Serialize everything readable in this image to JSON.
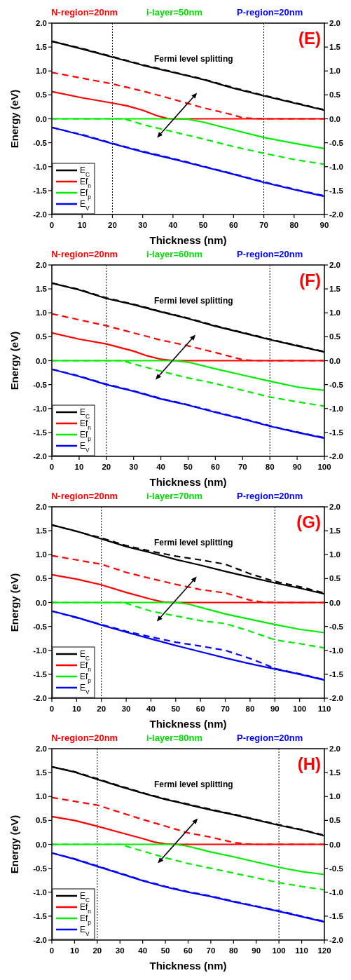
{
  "chart_data": [
    {
      "type": "line",
      "title": "(E)",
      "annotations": [
        "N-region=20nm",
        "i-layer=50nm",
        "P-region=20nm",
        "Fermi level splitting"
      ],
      "xlabel": "Thickness (nm)",
      "ylabel": "Energy (eV)",
      "xlim": [
        0,
        90
      ],
      "xticks": [
        0,
        10,
        20,
        30,
        40,
        50,
        60,
        70,
        80,
        90
      ],
      "ylim": [
        -2,
        2
      ],
      "yticks": [
        {
          "value": -2,
          "label": "-2.0"
        },
        {
          "value": -1.5,
          "label": "-1.5"
        },
        {
          "value": -1,
          "label": "-1.0"
        },
        {
          "value": -0.5,
          "label": "-0.5"
        },
        {
          "value": 0,
          "label": "0.0"
        },
        {
          "value": 0.5,
          "label": "0.5"
        },
        {
          "value": 1,
          "label": "1.0"
        },
        {
          "value": 1.5,
          "label": "1.5"
        },
        {
          "value": 2,
          "label": "2.0"
        }
      ],
      "y2lim": [
        -2,
        2
      ],
      "y2ticks": [
        {
          "value": -2,
          "label": "-2.0"
        },
        {
          "value": -1.5,
          "label": "-1.5"
        },
        {
          "value": -1,
          "label": "-1.0"
        },
        {
          "value": -0.5,
          "label": "-0.5"
        },
        {
          "value": 0,
          "label": "0.0"
        },
        {
          "value": 0.5,
          "label": "0.5"
        },
        {
          "value": 1,
          "label": "1.0"
        },
        {
          "value": 1.5,
          "label": "1.5"
        },
        {
          "value": 2,
          "label": "2.0"
        }
      ],
      "grid": false,
      "legend": "bottom left",
      "line_style": "solid",
      "marker": "none",
      "ref_lines": [
        {
          "axis": "x",
          "value": 20,
          "line_style": "dotted",
          "color": "#000000"
        },
        {
          "axis": "x",
          "value": 70,
          "line_style": "dotted",
          "color": "#000000"
        }
      ],
      "series": [
        {
          "name": "E$_{C}$",
          "color": "#000000",
          "x": [
            0,
            10,
            20,
            30,
            40,
            50,
            60,
            70,
            80,
            90
          ],
          "values": [
            1.62,
            1.46,
            1.29,
            1.12,
            0.97,
            0.82,
            0.64,
            0.48,
            0.33,
            0.18
          ]
        },
        {
          "name": "Ef$_{n}$",
          "color": "#ff0000",
          "x": [
            0,
            10,
            20,
            25,
            30,
            35,
            38,
            40,
            90
          ],
          "values": [
            0.57,
            0.44,
            0.33,
            0.27,
            0.18,
            0.06,
            0.01,
            0,
            0
          ]
        },
        {
          "name": "Ef$_{p}$",
          "color": "#00ee00",
          "x": [
            0,
            42,
            45,
            50,
            60,
            70,
            80,
            90
          ],
          "values": [
            0,
            0,
            -0.01,
            -0.07,
            -0.23,
            -0.39,
            -0.51,
            -0.62
          ]
        },
        {
          "name": "E$_{V}$",
          "color": "#0000ff",
          "x": [
            0,
            10,
            20,
            30,
            40,
            50,
            60,
            70,
            80,
            90
          ],
          "values": [
            -0.18,
            -0.34,
            -0.52,
            -0.69,
            -0.84,
            -1,
            -1.16,
            -1.33,
            -1.48,
            -1.62
          ]
        },
        {
          "color": "#000000",
          "line_style": "dashed",
          "x": [
            0,
            10,
            20,
            30,
            40,
            50,
            60,
            70,
            80,
            90
          ],
          "values": [
            1.62,
            1.47,
            1.3,
            1.13,
            0.98,
            0.83,
            0.65,
            0.49,
            0.34,
            0.19
          ]
        },
        {
          "color": "#ff0000",
          "line_style": "dashed",
          "x": [
            0,
            20,
            30,
            40,
            50,
            60,
            63,
            70,
            90
          ],
          "values": [
            0.97,
            0.73,
            0.58,
            0.41,
            0.23,
            0.08,
            0.02,
            0,
            0
          ]
        },
        {
          "color": "#00ee00",
          "line_style": "dashed",
          "x": [
            0,
            24,
            30,
            40,
            50,
            60,
            70,
            80,
            90
          ],
          "values": [
            0,
            0,
            -0.12,
            -0.27,
            -0.42,
            -0.58,
            -0.72,
            -0.85,
            -0.95
          ]
        },
        {
          "color": "#0000ff",
          "line_style": "dashed",
          "x": [
            0,
            10,
            20,
            30,
            40,
            50,
            60,
            70,
            80,
            90
          ],
          "values": [
            -0.18,
            -0.33,
            -0.51,
            -0.68,
            -0.83,
            -0.99,
            -1.15,
            -1.32,
            -1.47,
            -1.61
          ]
        }
      ]
    },
    {
      "type": "line",
      "title": "(F)",
      "annotations": [
        "N-region=20nm",
        "i-layer=60nm",
        "P-region=20nm",
        "Fermi level splitting"
      ],
      "xlabel": "Thickness (nm)",
      "ylabel": "Energy (eV)",
      "xlim": [
        0,
        100
      ],
      "xticks": [
        0,
        10,
        20,
        30,
        40,
        50,
        60,
        70,
        80,
        90,
        100
      ],
      "ylim": [
        -2,
        2
      ],
      "yticks": [
        {
          "value": -2,
          "label": "-2.0"
        },
        {
          "value": -1.5,
          "label": "-1.5"
        },
        {
          "value": -1,
          "label": "-1.0"
        },
        {
          "value": -0.5,
          "label": "-0.5"
        },
        {
          "value": 0,
          "label": "0.0"
        },
        {
          "value": 0.5,
          "label": "0.5"
        },
        {
          "value": 1,
          "label": "1.0"
        },
        {
          "value": 1.5,
          "label": "1.5"
        },
        {
          "value": 2,
          "label": "2.0"
        }
      ],
      "y2lim": [
        -2,
        2
      ],
      "y2ticks": [
        {
          "value": -2,
          "label": "-2.0"
        },
        {
          "value": -1.5,
          "label": "-1.5"
        },
        {
          "value": -1,
          "label": "-1.0"
        },
        {
          "value": -0.5,
          "label": "-0.5"
        },
        {
          "value": 0,
          "label": "0.0"
        },
        {
          "value": 0.5,
          "label": "0.5"
        },
        {
          "value": 1,
          "label": "1.0"
        },
        {
          "value": 1.5,
          "label": "1.5"
        },
        {
          "value": 2,
          "label": "2.0"
        }
      ],
      "grid": false,
      "legend": "bottom left",
      "line_style": "solid",
      "marker": "none",
      "ref_lines": [
        {
          "axis": "x",
          "value": 20,
          "line_style": "dotted",
          "color": "#000000"
        },
        {
          "axis": "x",
          "value": 80,
          "line_style": "dotted",
          "color": "#000000"
        }
      ],
      "series": [
        {
          "name": "E$_{C}$",
          "color": "#000000",
          "x": [
            0,
            10,
            20,
            30,
            40,
            50,
            60,
            70,
            80,
            90,
            100
          ],
          "values": [
            1.62,
            1.48,
            1.3,
            1.17,
            1.02,
            0.88,
            0.72,
            0.58,
            0.44,
            0.31,
            0.18
          ]
        },
        {
          "name": "Ef$_{n}$",
          "color": "#ff0000",
          "x": [
            0,
            10,
            20,
            30,
            35,
            40,
            45,
            100
          ],
          "values": [
            0.58,
            0.45,
            0.35,
            0.2,
            0.1,
            0.03,
            0,
            0
          ]
        },
        {
          "name": "Ef$_{p}$",
          "color": "#00ee00",
          "x": [
            0,
            45,
            50,
            60,
            70,
            80,
            90,
            100
          ],
          "values": [
            0,
            0,
            -0.03,
            -0.17,
            -0.3,
            -0.43,
            -0.55,
            -0.62
          ]
        },
        {
          "name": "E$_{V}$",
          "color": "#0000ff",
          "x": [
            0,
            10,
            20,
            30,
            40,
            50,
            60,
            70,
            80,
            90,
            100
          ],
          "values": [
            -0.18,
            -0.33,
            -0.5,
            -0.64,
            -0.8,
            -0.93,
            -1.08,
            -1.22,
            -1.37,
            -1.5,
            -1.62
          ]
        },
        {
          "color": "#000000",
          "line_style": "dashed",
          "x": [
            0,
            10,
            20,
            30,
            40,
            50,
            60,
            70,
            80,
            90,
            100
          ],
          "values": [
            1.62,
            1.49,
            1.31,
            1.18,
            1.03,
            0.89,
            0.73,
            0.59,
            0.45,
            0.32,
            0.19
          ]
        },
        {
          "color": "#ff0000",
          "line_style": "dashed",
          "x": [
            0,
            20,
            40,
            50,
            60,
            70,
            75,
            100
          ],
          "values": [
            0.98,
            0.73,
            0.43,
            0.31,
            0.17,
            0.02,
            0,
            0
          ]
        },
        {
          "color": "#00ee00",
          "line_style": "dashed",
          "x": [
            0,
            26,
            30,
            40,
            50,
            60,
            70,
            80,
            90,
            100
          ],
          "values": [
            0,
            0,
            -0.07,
            -0.22,
            -0.36,
            -0.48,
            -0.62,
            -0.76,
            -0.86,
            -0.95
          ]
        },
        {
          "color": "#0000ff",
          "line_style": "dashed",
          "x": [
            0,
            10,
            20,
            30,
            40,
            50,
            60,
            70,
            80,
            90,
            100
          ],
          "values": [
            -0.18,
            -0.32,
            -0.49,
            -0.63,
            -0.79,
            -0.92,
            -1.07,
            -1.21,
            -1.36,
            -1.49,
            -1.61
          ]
        }
      ]
    },
    {
      "type": "line",
      "title": "(G)",
      "annotations": [
        "N-region=20nm",
        "i-layer=70nm",
        "P-region=20nm",
        "Fermi level splitting"
      ],
      "xlabel": "Thickness (nm)",
      "ylabel": "Energy (eV)",
      "xlim": [
        0,
        110
      ],
      "xticks": [
        0,
        10,
        20,
        30,
        40,
        50,
        60,
        70,
        80,
        90,
        100,
        110
      ],
      "ylim": [
        -2,
        2
      ],
      "yticks": [
        {
          "value": -2,
          "label": "-2.0"
        },
        {
          "value": -1.5,
          "label": "-1.5"
        },
        {
          "value": -1,
          "label": "-1.0"
        },
        {
          "value": -0.5,
          "label": "-0.5"
        },
        {
          "value": 0,
          "label": "0.0"
        },
        {
          "value": 0.5,
          "label": "0.5"
        },
        {
          "value": 1,
          "label": "1.0"
        },
        {
          "value": 1.5,
          "label": "1.5"
        },
        {
          "value": 2,
          "label": "2.0"
        }
      ],
      "y2lim": [
        -2,
        2
      ],
      "y2ticks": [
        {
          "value": -2,
          "label": "-2.0"
        },
        {
          "value": -1.5,
          "label": "-1.5"
        },
        {
          "value": -1,
          "label": "-1.0"
        },
        {
          "value": -0.5,
          "label": "-0.5"
        },
        {
          "value": 0,
          "label": "0.0"
        },
        {
          "value": 0.5,
          "label": "0.5"
        },
        {
          "value": 1,
          "label": "1.0"
        },
        {
          "value": 1.5,
          "label": "1.5"
        },
        {
          "value": 2,
          "label": "2.0"
        }
      ],
      "grid": false,
      "legend": "bottom left",
      "line_style": "solid",
      "marker": "none",
      "ref_lines": [
        {
          "axis": "x",
          "value": 20,
          "line_style": "dotted",
          "color": "#000000"
        },
        {
          "axis": "x",
          "value": 90,
          "line_style": "dotted",
          "color": "#000000"
        }
      ],
      "series": [
        {
          "name": "E$_{C}$",
          "color": "#000000",
          "x": [
            0,
            10,
            20,
            30,
            40,
            50,
            60,
            70,
            80,
            90,
            100,
            110
          ],
          "values": [
            1.62,
            1.49,
            1.33,
            1.17,
            1.04,
            0.9,
            0.78,
            0.65,
            0.53,
            0.41,
            0.3,
            0.18
          ]
        },
        {
          "name": "Ef$_{n}$",
          "color": "#ff0000",
          "x": [
            0,
            10,
            20,
            30,
            40,
            45,
            50,
            110
          ],
          "values": [
            0.58,
            0.49,
            0.37,
            0.21,
            0.07,
            0.01,
            0,
            0
          ]
        },
        {
          "name": "Ef$_{p}$",
          "color": "#00ee00",
          "x": [
            0,
            50,
            55,
            60,
            70,
            80,
            90,
            100,
            110
          ],
          "values": [
            0,
            0,
            -0.03,
            -0.1,
            -0.24,
            -0.35,
            -0.46,
            -0.56,
            -0.63
          ]
        },
        {
          "name": "E$_{V}$",
          "color": "#0000ff",
          "x": [
            0,
            10,
            20,
            30,
            40,
            50,
            60,
            70,
            80,
            90,
            100,
            110
          ],
          "values": [
            -0.18,
            -0.31,
            -0.47,
            -0.62,
            -0.76,
            -0.9,
            -1.03,
            -1.16,
            -1.28,
            -1.39,
            -1.5,
            -1.62
          ]
        },
        {
          "color": "#000000",
          "line_style": "dashed",
          "x": [
            0,
            20,
            30,
            40,
            50,
            60,
            70,
            80,
            85,
            90,
            100,
            110
          ],
          "values": [
            1.62,
            1.35,
            1.19,
            1.07,
            0.97,
            0.89,
            0.8,
            0.6,
            0.52,
            0.44,
            0.33,
            0.2
          ]
        },
        {
          "color": "#ff0000",
          "line_style": "dashed",
          "x": [
            0,
            20,
            30,
            40,
            50,
            60,
            70,
            80,
            85,
            90,
            110
          ],
          "values": [
            0.98,
            0.8,
            0.63,
            0.5,
            0.38,
            0.27,
            0.2,
            0.05,
            0.01,
            0,
            0
          ]
        },
        {
          "color": "#00ee00",
          "line_style": "dashed",
          "x": [
            0,
            29,
            35,
            40,
            50,
            60,
            70,
            80,
            90,
            100,
            110
          ],
          "values": [
            0,
            0,
            -0.1,
            -0.18,
            -0.28,
            -0.38,
            -0.44,
            -0.6,
            -0.78,
            -0.86,
            -0.95
          ]
        },
        {
          "color": "#0000ff",
          "line_style": "dashed",
          "x": [
            0,
            20,
            30,
            40,
            50,
            60,
            70,
            80,
            85,
            90,
            100,
            110
          ],
          "values": [
            -0.18,
            -0.46,
            -0.6,
            -0.72,
            -0.83,
            -0.91,
            -1,
            -1.17,
            -1.27,
            -1.38,
            -1.49,
            -1.61
          ]
        }
      ]
    },
    {
      "type": "line",
      "title": "(H)",
      "annotations": [
        "N-region=20nm",
        "i-layer=80nm",
        "P-region=20nm",
        "Fermi level splitting"
      ],
      "xlabel": "Thickness (nm)",
      "ylabel": "Energy (eV)",
      "xlim": [
        0,
        120
      ],
      "xticks": [
        0,
        10,
        20,
        30,
        40,
        50,
        60,
        70,
        80,
        90,
        100,
        110,
        120
      ],
      "ylim": [
        -2,
        2
      ],
      "yticks": [
        {
          "value": -2,
          "label": "-2.0"
        },
        {
          "value": -1.5,
          "label": "-1.5"
        },
        {
          "value": -1,
          "label": "-1.0"
        },
        {
          "value": -0.5,
          "label": "-0.5"
        },
        {
          "value": 0,
          "label": "0.0"
        },
        {
          "value": 0.5,
          "label": "0.5"
        },
        {
          "value": 1,
          "label": "1.0"
        },
        {
          "value": 1.5,
          "label": "1.5"
        },
        {
          "value": 2,
          "label": "2.0"
        }
      ],
      "y2lim": [
        -2,
        2
      ],
      "y2ticks": [
        {
          "value": -2,
          "label": "-2.0"
        },
        {
          "value": -1.5,
          "label": "-1.5"
        },
        {
          "value": -1,
          "label": "-1.0"
        },
        {
          "value": -0.5,
          "label": "-0.5"
        },
        {
          "value": 0,
          "label": "0.0"
        },
        {
          "value": 0.5,
          "label": "0.5"
        },
        {
          "value": 1,
          "label": "1.0"
        },
        {
          "value": 1.5,
          "label": "1.5"
        },
        {
          "value": 2,
          "label": "2.0"
        }
      ],
      "grid": false,
      "legend": "bottom left",
      "line_style": "solid",
      "marker": "none",
      "ref_lines": [
        {
          "axis": "x",
          "value": 20,
          "line_style": "dotted",
          "color": "#000000"
        },
        {
          "axis": "x",
          "value": 100,
          "line_style": "dotted",
          "color": "#000000"
        }
      ],
      "series": [
        {
          "name": "E$_{C}$",
          "color": "#000000",
          "x": [
            0,
            10,
            20,
            30,
            40,
            50,
            60,
            70,
            80,
            90,
            100,
            110,
            120
          ],
          "values": [
            1.62,
            1.51,
            1.36,
            1.21,
            1.07,
            0.94,
            0.83,
            0.72,
            0.62,
            0.51,
            0.4,
            0.3,
            0.18
          ]
        },
        {
          "name": "Ef$_{n}$",
          "color": "#ff0000",
          "x": [
            0,
            10,
            20,
            30,
            40,
            45,
            50,
            55,
            120
          ],
          "values": [
            0.58,
            0.5,
            0.38,
            0.25,
            0.12,
            0.05,
            0.01,
            0,
            0
          ]
        },
        {
          "name": "Ef$_{p}$",
          "color": "#00ee00",
          "x": [
            0,
            55,
            60,
            70,
            80,
            90,
            100,
            110,
            120
          ],
          "values": [
            0,
            0,
            -0.04,
            -0.16,
            -0.26,
            -0.37,
            -0.48,
            -0.57,
            -0.63
          ]
        },
        {
          "name": "E$_{V}$",
          "color": "#0000ff",
          "x": [
            0,
            10,
            20,
            30,
            40,
            50,
            60,
            70,
            80,
            90,
            100,
            110,
            120
          ],
          "values": [
            -0.18,
            -0.31,
            -0.46,
            -0.61,
            -0.76,
            -0.89,
            -1,
            -1.09,
            -1.2,
            -1.3,
            -1.4,
            -1.51,
            -1.62
          ]
        },
        {
          "color": "#000000",
          "line_style": "dashed",
          "x": [
            0,
            10,
            20,
            30,
            40,
            50,
            60,
            70,
            80,
            90,
            100,
            110,
            120
          ],
          "values": [
            1.62,
            1.52,
            1.37,
            1.22,
            1.08,
            0.95,
            0.84,
            0.73,
            0.63,
            0.52,
            0.41,
            0.31,
            0.19
          ]
        },
        {
          "color": "#ff0000",
          "line_style": "dashed",
          "x": [
            0,
            20,
            30,
            40,
            50,
            60,
            70,
            80,
            85,
            90,
            120
          ],
          "values": [
            0.98,
            0.82,
            0.67,
            0.52,
            0.38,
            0.24,
            0.15,
            0.04,
            0.01,
            0,
            0
          ]
        },
        {
          "color": "#00ee00",
          "line_style": "dashed",
          "x": [
            0,
            30,
            40,
            50,
            60,
            70,
            80,
            90,
            100,
            110,
            120
          ],
          "values": [
            0,
            0,
            -0.14,
            -0.28,
            -0.4,
            -0.5,
            -0.6,
            -0.7,
            -0.8,
            -0.88,
            -0.95
          ]
        },
        {
          "color": "#0000ff",
          "line_style": "dashed",
          "x": [
            0,
            10,
            20,
            30,
            40,
            50,
            60,
            70,
            80,
            90,
            100,
            110,
            120
          ],
          "values": [
            -0.18,
            -0.3,
            -0.45,
            -0.6,
            -0.75,
            -0.88,
            -0.99,
            -1.08,
            -1.19,
            -1.29,
            -1.39,
            -1.5,
            -1.61
          ]
        }
      ]
    }
  ]
}
